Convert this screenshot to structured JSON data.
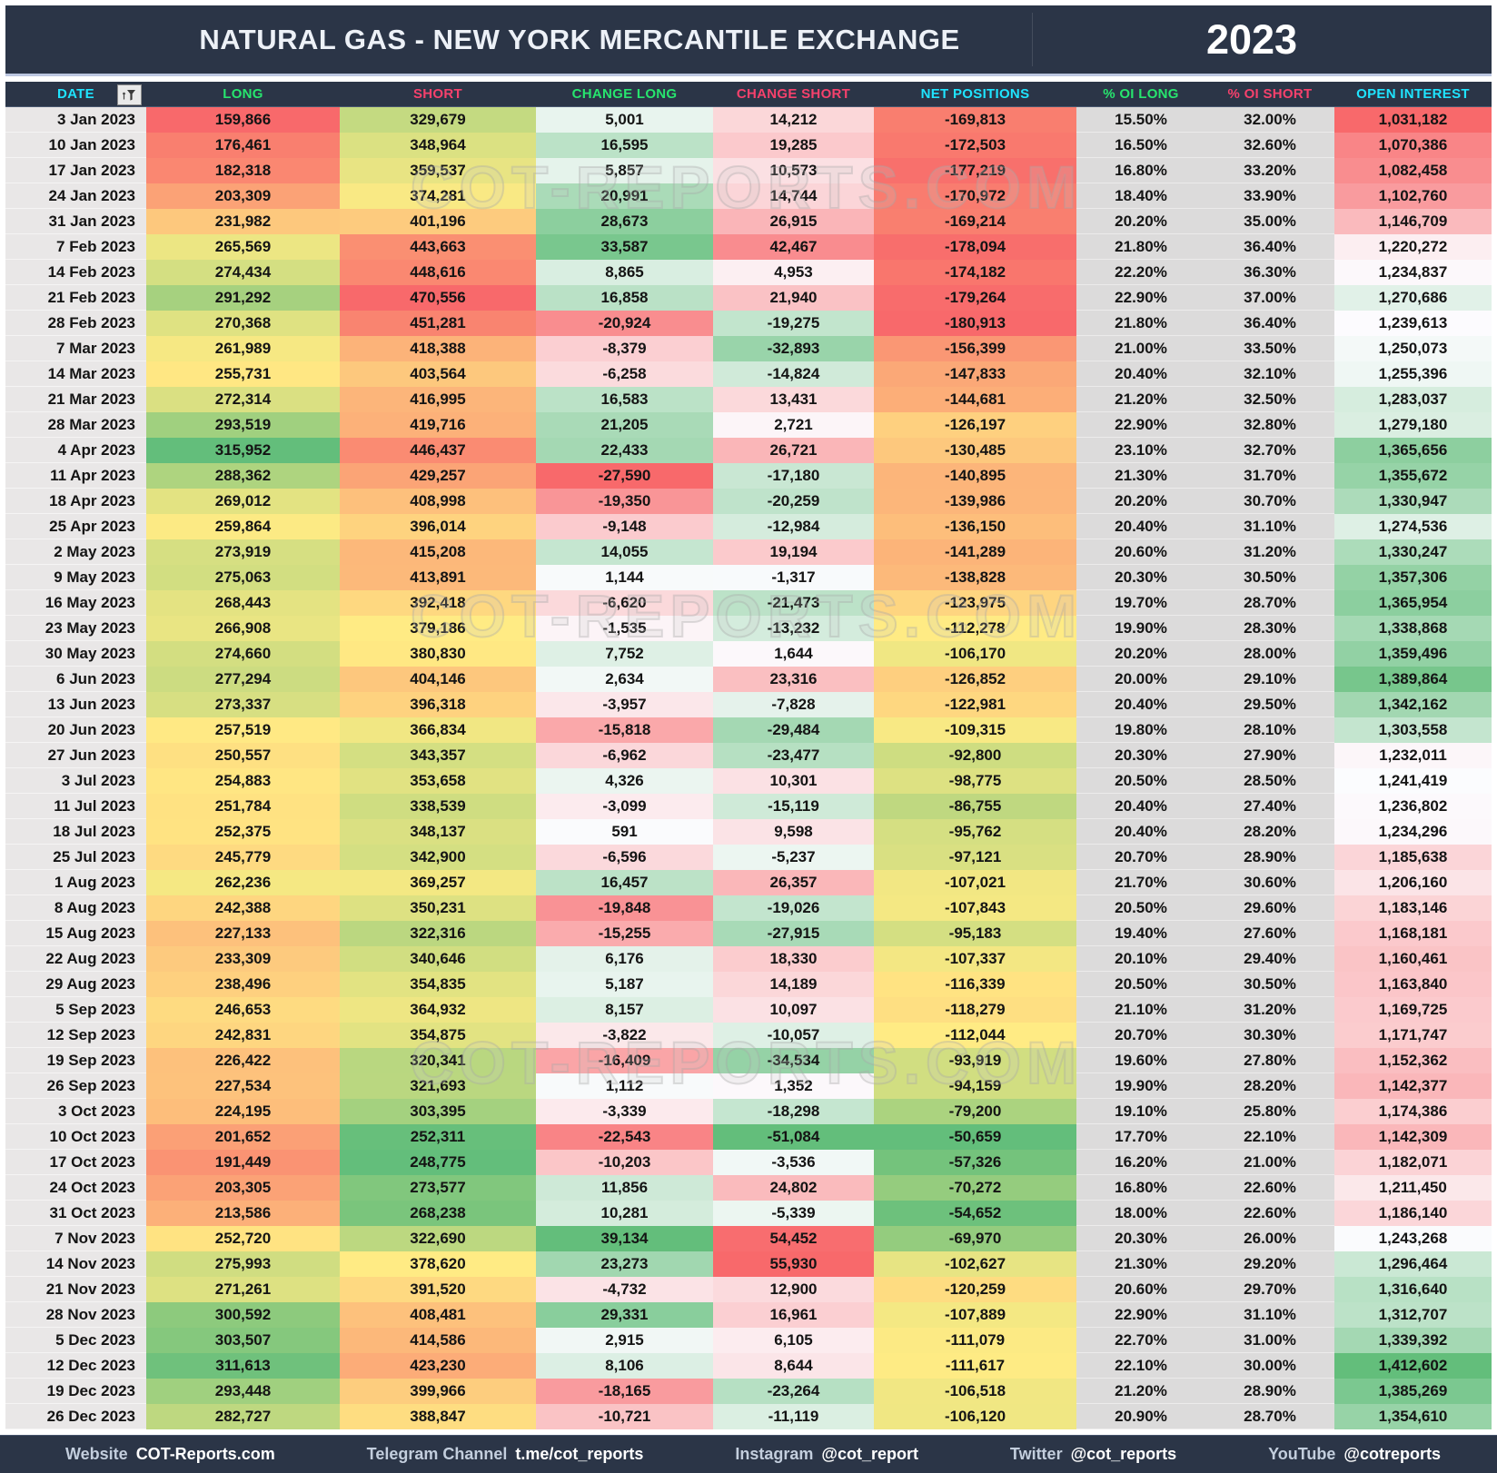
{
  "header": {
    "title": "NATURAL GAS - NEW YORK MERCANTILE EXCHANGE",
    "year": "2023"
  },
  "watermark": "COT-REPORTS.COM",
  "filter_icon": "funnel-filter",
  "chart_data": {
    "type": "table",
    "title": "NATURAL GAS - NEW YORK MERCANTILE EXCHANGE",
    "subtitle_year": "2023",
    "columns": [
      "DATE",
      "LONG",
      "SHORT",
      "CHANGE LONG",
      "CHANGE SHORT",
      "NET POSITIONS",
      "% OI LONG",
      "% OI SHORT",
      "OPEN INTEREST"
    ],
    "rows": [
      [
        "3 Jan 2023",
        "159,866",
        "329,679",
        "5,001",
        "14,212",
        "-169,813",
        "15.50%",
        "32.00%",
        "1,031,182"
      ],
      [
        "10 Jan 2023",
        "176,461",
        "348,964",
        "16,595",
        "19,285",
        "-172,503",
        "16.50%",
        "32.60%",
        "1,070,386"
      ],
      [
        "17 Jan 2023",
        "182,318",
        "359,537",
        "5,857",
        "10,573",
        "-177,219",
        "16.80%",
        "33.20%",
        "1,082,458"
      ],
      [
        "24 Jan 2023",
        "203,309",
        "374,281",
        "20,991",
        "14,744",
        "-170,972",
        "18.40%",
        "33.90%",
        "1,102,760"
      ],
      [
        "31 Jan 2023",
        "231,982",
        "401,196",
        "28,673",
        "26,915",
        "-169,214",
        "20.20%",
        "35.00%",
        "1,146,709"
      ],
      [
        "7 Feb 2023",
        "265,569",
        "443,663",
        "33,587",
        "42,467",
        "-178,094",
        "21.80%",
        "36.40%",
        "1,220,272"
      ],
      [
        "14 Feb 2023",
        "274,434",
        "448,616",
        "8,865",
        "4,953",
        "-174,182",
        "22.20%",
        "36.30%",
        "1,234,837"
      ],
      [
        "21 Feb 2023",
        "291,292",
        "470,556",
        "16,858",
        "21,940",
        "-179,264",
        "22.90%",
        "37.00%",
        "1,270,686"
      ],
      [
        "28 Feb 2023",
        "270,368",
        "451,281",
        "-20,924",
        "-19,275",
        "-180,913",
        "21.80%",
        "36.40%",
        "1,239,613"
      ],
      [
        "7 Mar 2023",
        "261,989",
        "418,388",
        "-8,379",
        "-32,893",
        "-156,399",
        "21.00%",
        "33.50%",
        "1,250,073"
      ],
      [
        "14 Mar 2023",
        "255,731",
        "403,564",
        "-6,258",
        "-14,824",
        "-147,833",
        "20.40%",
        "32.10%",
        "1,255,396"
      ],
      [
        "21 Mar 2023",
        "272,314",
        "416,995",
        "16,583",
        "13,431",
        "-144,681",
        "21.20%",
        "32.50%",
        "1,283,037"
      ],
      [
        "28 Mar 2023",
        "293,519",
        "419,716",
        "21,205",
        "2,721",
        "-126,197",
        "22.90%",
        "32.80%",
        "1,279,180"
      ],
      [
        "4 Apr 2023",
        "315,952",
        "446,437",
        "22,433",
        "26,721",
        "-130,485",
        "23.10%",
        "32.70%",
        "1,365,656"
      ],
      [
        "11 Apr 2023",
        "288,362",
        "429,257",
        "-27,590",
        "-17,180",
        "-140,895",
        "21.30%",
        "31.70%",
        "1,355,672"
      ],
      [
        "18 Apr 2023",
        "269,012",
        "408,998",
        "-19,350",
        "-20,259",
        "-139,986",
        "20.20%",
        "30.70%",
        "1,330,947"
      ],
      [
        "25 Apr 2023",
        "259,864",
        "396,014",
        "-9,148",
        "-12,984",
        "-136,150",
        "20.40%",
        "31.10%",
        "1,274,536"
      ],
      [
        "2 May 2023",
        "273,919",
        "415,208",
        "14,055",
        "19,194",
        "-141,289",
        "20.60%",
        "31.20%",
        "1,330,247"
      ],
      [
        "9 May 2023",
        "275,063",
        "413,891",
        "1,144",
        "-1,317",
        "-138,828",
        "20.30%",
        "30.50%",
        "1,357,306"
      ],
      [
        "16 May 2023",
        "268,443",
        "392,418",
        "-6,620",
        "-21,473",
        "-123,975",
        "19.70%",
        "28.70%",
        "1,365,954"
      ],
      [
        "23 May 2023",
        "266,908",
        "379,186",
        "-1,535",
        "-13,232",
        "-112,278",
        "19.90%",
        "28.30%",
        "1,338,868"
      ],
      [
        "30 May 2023",
        "274,660",
        "380,830",
        "7,752",
        "1,644",
        "-106,170",
        "20.20%",
        "28.00%",
        "1,359,496"
      ],
      [
        "6 Jun 2023",
        "277,294",
        "404,146",
        "2,634",
        "23,316",
        "-126,852",
        "20.00%",
        "29.10%",
        "1,389,864"
      ],
      [
        "13 Jun 2023",
        "273,337",
        "396,318",
        "-3,957",
        "-7,828",
        "-122,981",
        "20.40%",
        "29.50%",
        "1,342,162"
      ],
      [
        "20 Jun 2023",
        "257,519",
        "366,834",
        "-15,818",
        "-29,484",
        "-109,315",
        "19.80%",
        "28.10%",
        "1,303,558"
      ],
      [
        "27 Jun 2023",
        "250,557",
        "343,357",
        "-6,962",
        "-23,477",
        "-92,800",
        "20.30%",
        "27.90%",
        "1,232,011"
      ],
      [
        "3 Jul 2023",
        "254,883",
        "353,658",
        "4,326",
        "10,301",
        "-98,775",
        "20.50%",
        "28.50%",
        "1,241,419"
      ],
      [
        "11 Jul 2023",
        "251,784",
        "338,539",
        "-3,099",
        "-15,119",
        "-86,755",
        "20.40%",
        "27.40%",
        "1,236,802"
      ],
      [
        "18 Jul 2023",
        "252,375",
        "348,137",
        "591",
        "9,598",
        "-95,762",
        "20.40%",
        "28.20%",
        "1,234,296"
      ],
      [
        "25 Jul 2023",
        "245,779",
        "342,900",
        "-6,596",
        "-5,237",
        "-97,121",
        "20.70%",
        "28.90%",
        "1,185,638"
      ],
      [
        "1 Aug 2023",
        "262,236",
        "369,257",
        "16,457",
        "26,357",
        "-107,021",
        "21.70%",
        "30.60%",
        "1,206,160"
      ],
      [
        "8 Aug 2023",
        "242,388",
        "350,231",
        "-19,848",
        "-19,026",
        "-107,843",
        "20.50%",
        "29.60%",
        "1,183,146"
      ],
      [
        "15 Aug 2023",
        "227,133",
        "322,316",
        "-15,255",
        "-27,915",
        "-95,183",
        "19.40%",
        "27.60%",
        "1,168,181"
      ],
      [
        "22 Aug 2023",
        "233,309",
        "340,646",
        "6,176",
        "18,330",
        "-107,337",
        "20.10%",
        "29.40%",
        "1,160,461"
      ],
      [
        "29 Aug 2023",
        "238,496",
        "354,835",
        "5,187",
        "14,189",
        "-116,339",
        "20.50%",
        "30.50%",
        "1,163,840"
      ],
      [
        "5 Sep 2023",
        "246,653",
        "364,932",
        "8,157",
        "10,097",
        "-118,279",
        "21.10%",
        "31.20%",
        "1,169,725"
      ],
      [
        "12 Sep 2023",
        "242,831",
        "354,875",
        "-3,822",
        "-10,057",
        "-112,044",
        "20.70%",
        "30.30%",
        "1,171,747"
      ],
      [
        "19 Sep 2023",
        "226,422",
        "320,341",
        "-16,409",
        "-34,534",
        "-93,919",
        "19.60%",
        "27.80%",
        "1,152,362"
      ],
      [
        "26 Sep 2023",
        "227,534",
        "321,693",
        "1,112",
        "1,352",
        "-94,159",
        "19.90%",
        "28.20%",
        "1,142,377"
      ],
      [
        "3 Oct 2023",
        "224,195",
        "303,395",
        "-3,339",
        "-18,298",
        "-79,200",
        "19.10%",
        "25.80%",
        "1,174,386"
      ],
      [
        "10 Oct 2023",
        "201,652",
        "252,311",
        "-22,543",
        "-51,084",
        "-50,659",
        "17.70%",
        "22.10%",
        "1,142,309"
      ],
      [
        "17 Oct 2023",
        "191,449",
        "248,775",
        "-10,203",
        "-3,536",
        "-57,326",
        "16.20%",
        "21.00%",
        "1,182,071"
      ],
      [
        "24 Oct 2023",
        "203,305",
        "273,577",
        "11,856",
        "24,802",
        "-70,272",
        "16.80%",
        "22.60%",
        "1,211,450"
      ],
      [
        "31 Oct 2023",
        "213,586",
        "268,238",
        "10,281",
        "-5,339",
        "-54,652",
        "18.00%",
        "22.60%",
        "1,186,140"
      ],
      [
        "7 Nov 2023",
        "252,720",
        "322,690",
        "39,134",
        "54,452",
        "-69,970",
        "20.30%",
        "26.00%",
        "1,243,268"
      ],
      [
        "14 Nov 2023",
        "275,993",
        "378,620",
        "23,273",
        "55,930",
        "-102,627",
        "21.30%",
        "29.20%",
        "1,296,464"
      ],
      [
        "21 Nov 2023",
        "271,261",
        "391,520",
        "-4,732",
        "12,900",
        "-120,259",
        "20.60%",
        "29.70%",
        "1,316,640"
      ],
      [
        "28 Nov 2023",
        "300,592",
        "408,481",
        "29,331",
        "16,961",
        "-107,889",
        "22.90%",
        "31.10%",
        "1,312,707"
      ],
      [
        "5 Dec 2023",
        "303,507",
        "414,586",
        "2,915",
        "6,105",
        "-111,079",
        "22.70%",
        "31.00%",
        "1,339,392"
      ],
      [
        "12 Dec 2023",
        "311,613",
        "423,230",
        "8,106",
        "8,644",
        "-111,617",
        "22.10%",
        "30.00%",
        "1,412,602"
      ],
      [
        "19 Dec 2023",
        "293,448",
        "399,966",
        "-18,165",
        "-23,264",
        "-106,518",
        "21.20%",
        "28.90%",
        "1,385,269"
      ],
      [
        "26 Dec 2023",
        "282,727",
        "388,847",
        "-10,721",
        "-11,119",
        "-106,120",
        "20.90%",
        "28.70%",
        "1,354,610"
      ]
    ],
    "heatmap_legend": "LONG/NET: red=low green=high; SHORT: green=low red=high; CHANGE LONG: red=negative green=positive; CHANGE SHORT: green=negative red=positive; OPEN INTEREST: red=low green=high; % OI columns plain gray"
  },
  "footer": {
    "items": [
      {
        "label": "Website",
        "value": "COT-Reports.com"
      },
      {
        "label": "Telegram Channel",
        "value": "t.me/cot_reports"
      },
      {
        "label": "Instagram",
        "value": "@cot_report"
      },
      {
        "label": "Twitter",
        "value": "@cot_reports"
      },
      {
        "label": "YouTube",
        "value": "@cotreports"
      }
    ]
  },
  "colors": {
    "bar_navy": "#2B3547",
    "header_cyan": "#1FE4FF",
    "header_green": "#27E56E",
    "header_pink": "#F6416C",
    "date_col_bg": "#E9E7E7",
    "pct_col_bg": "#DCDBDB",
    "scale_red": "#F8696B",
    "scale_yellow": "#FFEB84",
    "scale_green": "#63BE7B",
    "scale_white": "#FCFCFF",
    "footer_label": "#C3CEDD",
    "footer_value": "#FFFFFF"
  }
}
